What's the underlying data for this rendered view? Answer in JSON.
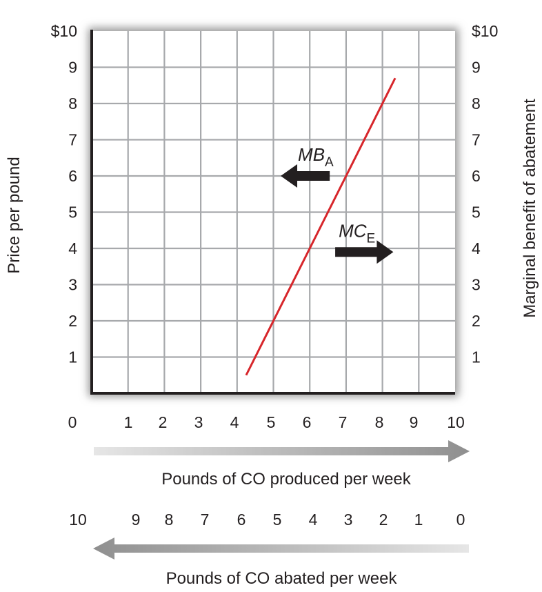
{
  "chart_data": {
    "type": "line",
    "title": "",
    "ylabel_left": "Price per pound",
    "ylabel_right": "Marginal benefit of abatement",
    "xlabel_top": "Pounds of CO produced per week",
    "xlabel_bottom": "Pounds of CO abated per week",
    "xlim": [
      0,
      10
    ],
    "ylim": [
      0,
      10
    ],
    "grid": true,
    "y_ticks_left": [
      "1",
      "2",
      "3",
      "4",
      "5",
      "6",
      "7",
      "8",
      "9",
      "$10"
    ],
    "y_ticks_right": [
      "1",
      "2",
      "3",
      "4",
      "5",
      "6",
      "7",
      "8",
      "9",
      "$10"
    ],
    "x_ticks_produced": [
      "0",
      "1",
      "2",
      "3",
      "4",
      "5",
      "6",
      "7",
      "8",
      "9",
      "10"
    ],
    "x_ticks_abated": [
      "10",
      "9",
      "8",
      "7",
      "6",
      "5",
      "4",
      "3",
      "2",
      "1",
      "0"
    ],
    "series": [
      {
        "points": [
          [
            4.25,
            0.5
          ],
          [
            8.35,
            8.7
          ]
        ],
        "color": "#d7262b"
      }
    ],
    "annotations": [
      {
        "main": "MB",
        "sub": "A",
        "arrow": "left",
        "from": [
          6.55,
          6.0
        ],
        "to": [
          5.2,
          6.0
        ]
      },
      {
        "main": "MC",
        "sub": "E",
        "arrow": "right",
        "from": [
          6.7,
          3.9
        ],
        "to": [
          8.3,
          3.9
        ]
      }
    ],
    "colors": {
      "line": "#d7262b",
      "grid": "#a7a9ac",
      "axis": "#231f20",
      "arrow_gray": "#8a8a8a"
    }
  }
}
